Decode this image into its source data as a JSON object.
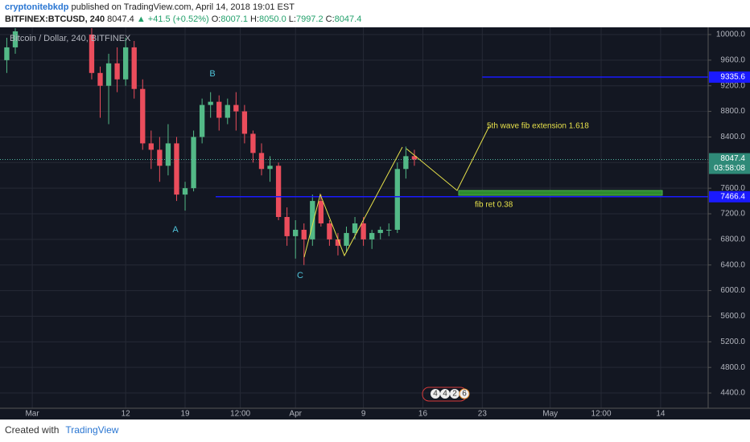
{
  "header": {
    "author": "cryptonitebkdp",
    "published": "published on TradingView.com, April 14, 2018 19:01 EST",
    "symbol": "BITFINEX:BTCUSD, 240",
    "last": "8047.4",
    "change": "▲ +41.5 (+0.52%)",
    "ohlc": [
      {
        "label": "O:",
        "value": "8007.1"
      },
      {
        "label": "H:",
        "value": "8050.0"
      },
      {
        "label": "L:",
        "value": "7997.2"
      },
      {
        "label": "C:",
        "value": "8047.4"
      }
    ]
  },
  "chart_data": {
    "type": "candlestick",
    "title": "Bitcoin / Dollar, 240, BITFINEX",
    "up_color": "#53b987",
    "down_color": "#eb4d5c",
    "grid": true,
    "x": [
      -3,
      -2,
      7,
      8,
      9,
      10,
      11,
      12,
      13,
      14,
      15,
      16,
      17,
      18,
      19,
      20,
      21,
      22,
      23,
      24,
      25,
      26,
      27,
      28,
      29,
      30,
      31,
      32,
      33,
      34,
      35,
      36,
      37,
      38,
      39,
      40,
      41,
      42,
      43,
      44,
      45
    ],
    "open": [
      9600,
      9800,
      10000,
      9400,
      9200,
      9550,
      9300,
      9800,
      9150,
      8300,
      8200,
      7950,
      8300,
      7500,
      7600,
      8400,
      8900,
      8950,
      8700,
      8900,
      8800,
      8450,
      8150,
      7900,
      7950,
      7150,
      6850,
      6950,
      6800,
      7400,
      7050,
      6800,
      6700,
      6900,
      7050,
      6800,
      6900,
      6950,
      6950,
      7900,
      8100
    ],
    "high": [
      9950,
      10100,
      10100,
      9500,
      9700,
      9800,
      9950,
      9900,
      9300,
      8500,
      8400,
      8600,
      8400,
      7700,
      8500,
      9000,
      9100,
      9050,
      9000,
      9100,
      8900,
      8500,
      8300,
      8100,
      8000,
      7300,
      7100,
      7050,
      7500,
      7500,
      7100,
      6900,
      7000,
      7150,
      7150,
      6950,
      7000,
      7050,
      8000,
      8250,
      8200
    ],
    "low": [
      9400,
      9700,
      9300,
      8700,
      8600,
      9100,
      9200,
      9000,
      8200,
      7900,
      7700,
      7800,
      7400,
      7250,
      7550,
      8300,
      8700,
      8500,
      8600,
      8500,
      8300,
      8000,
      7800,
      7700,
      7100,
      6700,
      6500,
      6400,
      6700,
      7000,
      6700,
      6550,
      6600,
      6800,
      6700,
      6650,
      6800,
      6850,
      6900,
      7750,
      7950
    ],
    "close": [
      9800,
      10050,
      9400,
      9200,
      9550,
      9300,
      9800,
      9150,
      8300,
      8200,
      7950,
      8300,
      7500,
      7600,
      8400,
      8900,
      8950,
      8700,
      8900,
      8800,
      8450,
      8150,
      7900,
      7950,
      7150,
      6850,
      6950,
      6800,
      7400,
      7050,
      6800,
      6700,
      6900,
      7050,
      6800,
      6900,
      6950,
      6950,
      7900,
      8100,
      8047.4
    ],
    "xlim": [
      -3.8,
      79.6
    ],
    "ylim": [
      4162,
      10113
    ],
    "xticks": [
      {
        "value": 0,
        "label": "Mar"
      },
      {
        "value": 11,
        "label": "12"
      },
      {
        "value": 18,
        "label": "19"
      },
      {
        "value": 24.5,
        "label": "12:00"
      },
      {
        "value": 31,
        "label": "Apr"
      },
      {
        "value": 39,
        "label": "9"
      },
      {
        "value": 46,
        "label": "16"
      },
      {
        "value": 53,
        "label": "23"
      },
      {
        "value": 61,
        "label": "May"
      },
      {
        "value": 67,
        "label": "12:00"
      },
      {
        "value": 74,
        "label": "14"
      }
    ],
    "yticks": [
      {
        "value": 10000,
        "label": "10000.0"
      },
      {
        "value": 9600,
        "label": "9600.0"
      },
      {
        "value": 9200,
        "label": "9200.0"
      },
      {
        "value": 8800,
        "label": "8800.0"
      },
      {
        "value": 8400,
        "label": "8400.0"
      },
      {
        "value": 8000,
        "label": "8000.0"
      },
      {
        "value": 7600,
        "label": "7600.0"
      },
      {
        "value": 7200,
        "label": "7200.0"
      },
      {
        "value": 6800,
        "label": "6800.0"
      },
      {
        "value": 6400,
        "label": "6400.0"
      },
      {
        "value": 6000,
        "label": "6000.0"
      },
      {
        "value": 5600,
        "label": "5600.0"
      },
      {
        "value": 5200,
        "label": "5200.0"
      },
      {
        "value": 4800,
        "label": "4800.0"
      },
      {
        "value": 4400,
        "label": "4400.0"
      }
    ],
    "levels": [
      {
        "value": 9335.6,
        "label": "9335.6",
        "from": 53,
        "color": "#1a1aff"
      },
      {
        "value": 7466.4,
        "label": "7466.4",
        "from": 21.6,
        "color": "#1a1aff"
      }
    ],
    "last_price": {
      "value": 8047.4,
      "label": "8047.4",
      "countdown": "03:58:08",
      "color": "#2f8a78"
    },
    "annotations": [
      "5th wave fib extension 1.618",
      "fib ret 0.38",
      "B",
      "A",
      "C"
    ],
    "events": [
      "4",
      "4",
      "2",
      "6"
    ]
  },
  "footer": {
    "text": "Created with",
    "brand": "TradingView"
  }
}
